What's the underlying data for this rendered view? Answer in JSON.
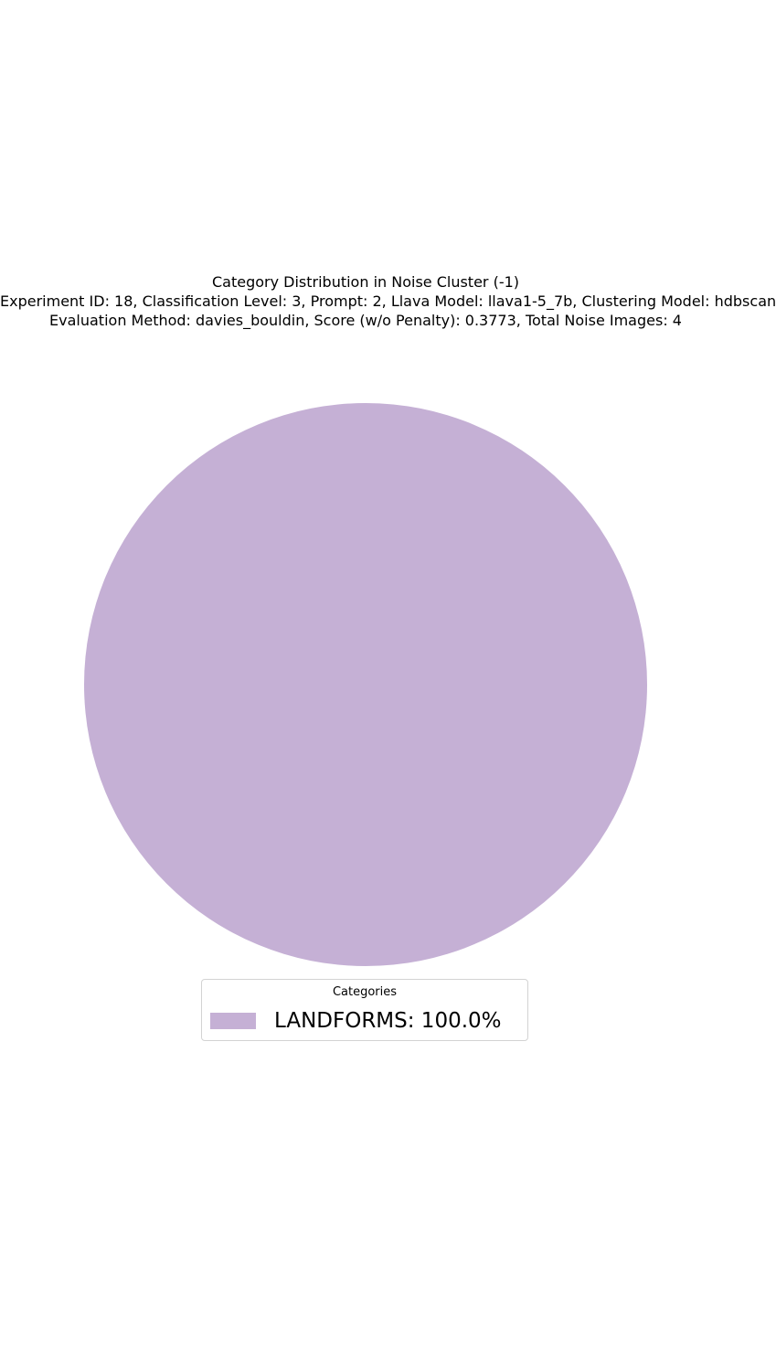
{
  "chart_data": {
    "type": "pie",
    "title": [
      "Category Distribution in Noise Cluster (-1)",
      "Experiment ID: 18, Classification Level: 3, Prompt: 2, Llava Model: llava1-5_7b, Clustering Model: hdbscan",
      "Evaluation Method: davies_bouldin, Score (w/o Penalty): 0.3773, Total Noise Images: 4"
    ],
    "legend_title": "Categories",
    "legend_placement": "bottom-center",
    "slices": [
      {
        "label": "LANDFORMS",
        "value": 100.0,
        "legend_text": "LANDFORMS: 100.0%",
        "color": "#c5b0d5"
      }
    ]
  }
}
